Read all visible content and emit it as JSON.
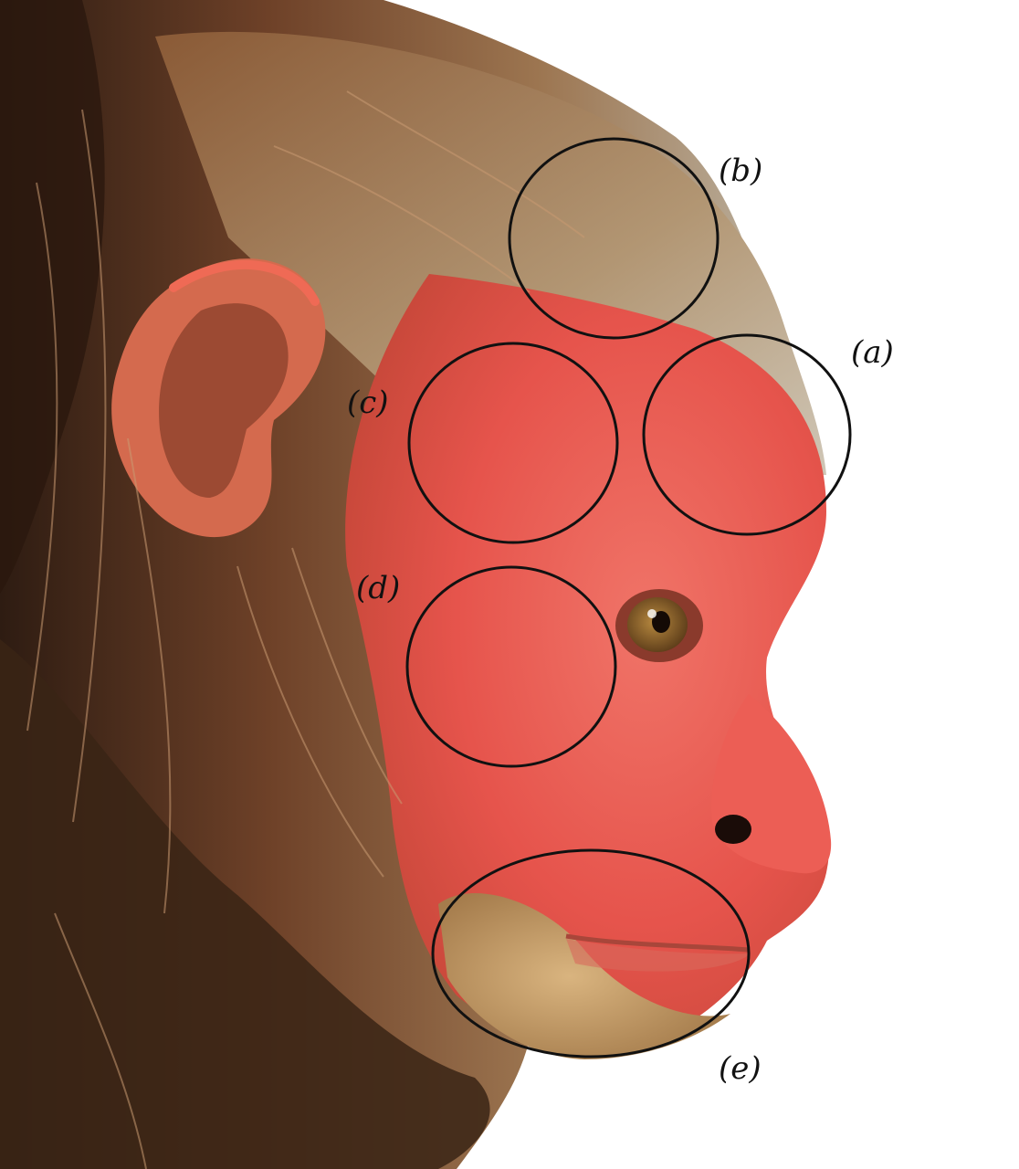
{
  "figure": {
    "subject": "bald-uakari-profile",
    "colors": {
      "background": "#ffffff",
      "face": "#e8554e",
      "face_light": "#f07a6e",
      "fur_dark": "#3b2417",
      "fur_mid": "#7a4a2e",
      "fur_light": "#b08a62",
      "fur_grey": "#b7ab98",
      "chin": "#c9a46e",
      "circle_stroke": "#111111"
    },
    "regions": [
      {
        "id": "a",
        "label": "(a)"
      },
      {
        "id": "b",
        "label": "(b)"
      },
      {
        "id": "c",
        "label": "(c)"
      },
      {
        "id": "d",
        "label": "(d)"
      },
      {
        "id": "e",
        "label": "(e)"
      }
    ]
  }
}
